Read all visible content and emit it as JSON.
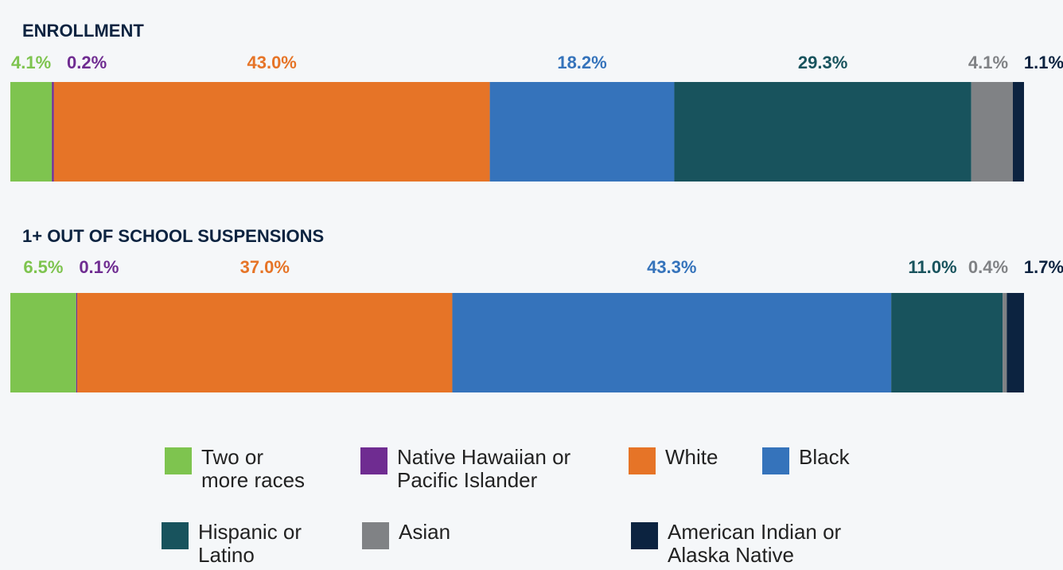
{
  "chart_data": {
    "type": "stacked-bar-100",
    "categories": [
      "ENROLLMENT",
      "1+ OUT OF SCHOOL SUSPENSIONS"
    ],
    "xlim": [
      0,
      100
    ],
    "series": [
      {
        "name": "Two or more races",
        "color": "#7ec44f",
        "values": [
          4.1,
          6.5
        ],
        "value_labels": [
          "4.1%",
          "6.5%"
        ]
      },
      {
        "name": "Native Hawaiian or Pacific Islander",
        "color": "#6f2c91",
        "values": [
          0.2,
          0.1
        ],
        "value_labels": [
          "0.2%",
          "0.1%"
        ]
      },
      {
        "name": "White",
        "color": "#e67427",
        "values": [
          43,
          37
        ],
        "value_labels": [
          "43.0%",
          "37.0%"
        ]
      },
      {
        "name": "Black",
        "color": "#3573bb",
        "values": [
          18.2,
          43.3
        ],
        "value_labels": [
          "18.2%",
          "43.3%"
        ]
      },
      {
        "name": "Hispanic or Latino",
        "color": "#18535d",
        "values": [
          29.3,
          11
        ],
        "value_labels": [
          "29.3%",
          "11.0%"
        ]
      },
      {
        "name": "Asian",
        "color": "#808285",
        "values": [
          4.1,
          0.4
        ],
        "value_labels": [
          "4.1%",
          "0.4%"
        ]
      },
      {
        "name": "American Indian or Alaska Native",
        "color": "#0c2340",
        "values": [
          1.1,
          1.7
        ],
        "value_labels": [
          "1.1%",
          "1.7%"
        ]
      }
    ]
  }
}
